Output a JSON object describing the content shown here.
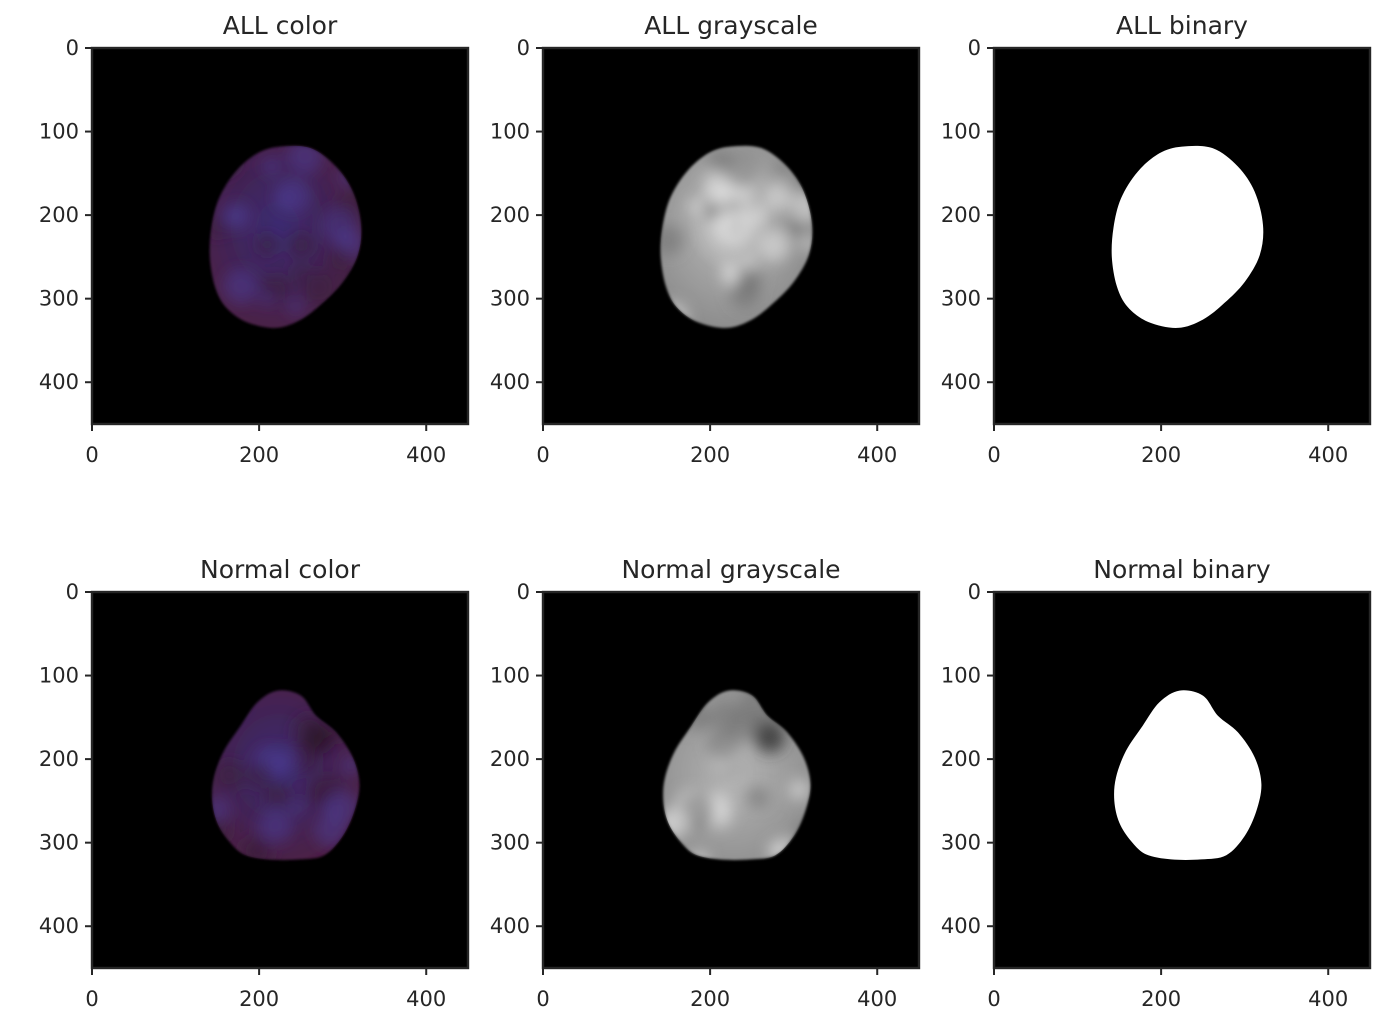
{
  "figure": {
    "image_extent": [
      0,
      450
    ],
    "x_ticks": [
      0,
      200,
      400
    ],
    "y_ticks": [
      0,
      100,
      200,
      300,
      400
    ],
    "colors": {
      "background": "#000000",
      "axis_frame": "#262626",
      "color_cell_fill": "#4a1f4c",
      "color_cell_mid": "#3c2a6a",
      "gray_cell_fill": "#a0a0a0",
      "binary_cell_fill": "#ffffff"
    },
    "panels": [
      {
        "title": "ALL color",
        "mode": "color",
        "cell": "all"
      },
      {
        "title": "ALL grayscale",
        "mode": "grayscale",
        "cell": "all"
      },
      {
        "title": "ALL binary",
        "mode": "binary",
        "cell": "all"
      },
      {
        "title": "Normal color",
        "mode": "color",
        "cell": "normal"
      },
      {
        "title": "Normal grayscale",
        "mode": "grayscale",
        "cell": "normal"
      },
      {
        "title": "Normal binary",
        "mode": "binary",
        "cell": "normal"
      }
    ]
  }
}
